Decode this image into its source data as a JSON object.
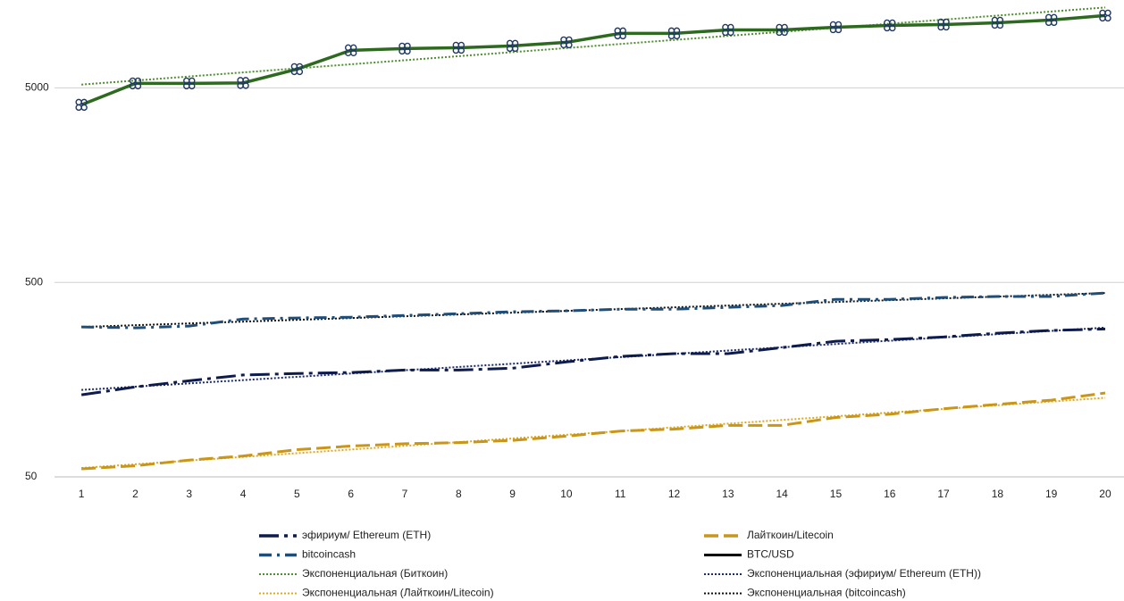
{
  "chart_data": {
    "type": "line",
    "log_scale": true,
    "grid": true,
    "x": [
      1,
      2,
      3,
      4,
      5,
      6,
      7,
      8,
      9,
      10,
      11,
      12,
      13,
      14,
      15,
      16,
      17,
      18,
      19,
      20
    ],
    "xlim": [
      0.5,
      20.05
    ],
    "xticks": [
      1,
      2,
      3,
      4,
      5,
      6,
      7,
      8,
      9,
      10,
      11,
      12,
      13,
      14,
      15,
      16,
      17,
      18,
      19,
      20
    ],
    "ylim": [
      50,
      13000
    ],
    "yticks": [
      50,
      500,
      5000
    ],
    "series": [
      {
        "name": "эфириум/ Ethereum (ETH)",
        "color": "#0e1b4d",
        "dash": "22 6 4 6",
        "values": [
          132,
          145,
          156,
          167,
          170,
          172,
          177,
          177,
          181,
          195,
          208,
          215,
          215,
          231,
          249,
          254,
          262,
          274,
          283,
          288
        ],
        "trendline": {
          "name": "Экспоненциальная (эфириум/ Ethereum (ETH))",
          "color": "#1a2a6c"
        }
      },
      {
        "name": "Лайткоин/Litecoin",
        "color": "#c9961a",
        "dash": "16 6",
        "values": [
          55,
          57,
          61,
          64,
          69,
          72,
          74,
          75,
          77,
          81,
          86,
          88,
          92,
          92,
          101,
          105,
          112,
          118,
          124,
          135
        ],
        "trendline": {
          "name": "Экспоненциальная (Лайткоин/Litecoin)",
          "color": "#e0a820"
        }
      },
      {
        "name": "bitcoincash",
        "color": "#1f4e79",
        "dash": "14 6 3 6",
        "values": [
          295,
          292,
          298,
          324,
          328,
          331,
          338,
          345,
          353,
          357,
          364,
          364,
          372,
          380,
          409,
          409,
          418,
          423,
          423,
          441
        ],
        "trendline": {
          "name": "Экспоненциальная (bitcoincash)",
          "color": "#111111"
        }
      },
      {
        "name": "BTC/USD",
        "color": "#2d6a1f",
        "dash": "",
        "markers": true,
        "values": [
          4090,
          5270,
          5270,
          5300,
          6240,
          7800,
          7960,
          8040,
          8220,
          8570,
          9530,
          9530,
          9930,
          9930,
          10250,
          10470,
          10580,
          10810,
          11170,
          11770
        ],
        "trendline": {
          "name": "Экспоненциальная (Биткоин)",
          "color": "#4f8f2f"
        }
      }
    ]
  }
}
